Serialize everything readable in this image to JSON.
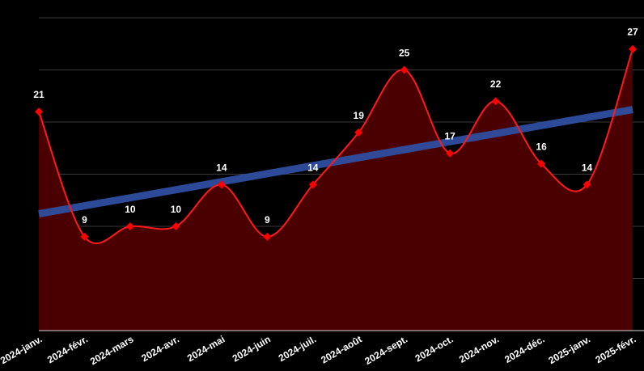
{
  "chart_data": {
    "type": "area",
    "categories": [
      "2024-janv.",
      "2024-févr.",
      "2024-mars",
      "2024-avr.",
      "2024-mai",
      "2024-juin",
      "2024-juil.",
      "2024-août",
      "2024-sept.",
      "2024-oct.",
      "2024-nov.",
      "2024-déc.",
      "2025-janv.",
      "2025-févr."
    ],
    "series": [
      {
        "values": [
          21,
          9,
          10,
          10,
          14,
          9,
          14,
          19,
          25,
          17,
          22,
          16,
          14,
          27
        ]
      }
    ],
    "trendline": {
      "type": "linear",
      "start": 11.2,
      "end": 21.2
    },
    "ylim": [
      0,
      30
    ],
    "grid": true,
    "legend": "none",
    "data_labels": true,
    "title": "",
    "xlabel": "",
    "ylabel": "",
    "colors": {
      "background": "#000000",
      "area_fill": "#4a0000",
      "line": "#ff1a1a",
      "marker": "#ff0000",
      "trendline": "#2f4fa0",
      "grid": "#3a3a3a",
      "text": "#ffffff"
    }
  }
}
